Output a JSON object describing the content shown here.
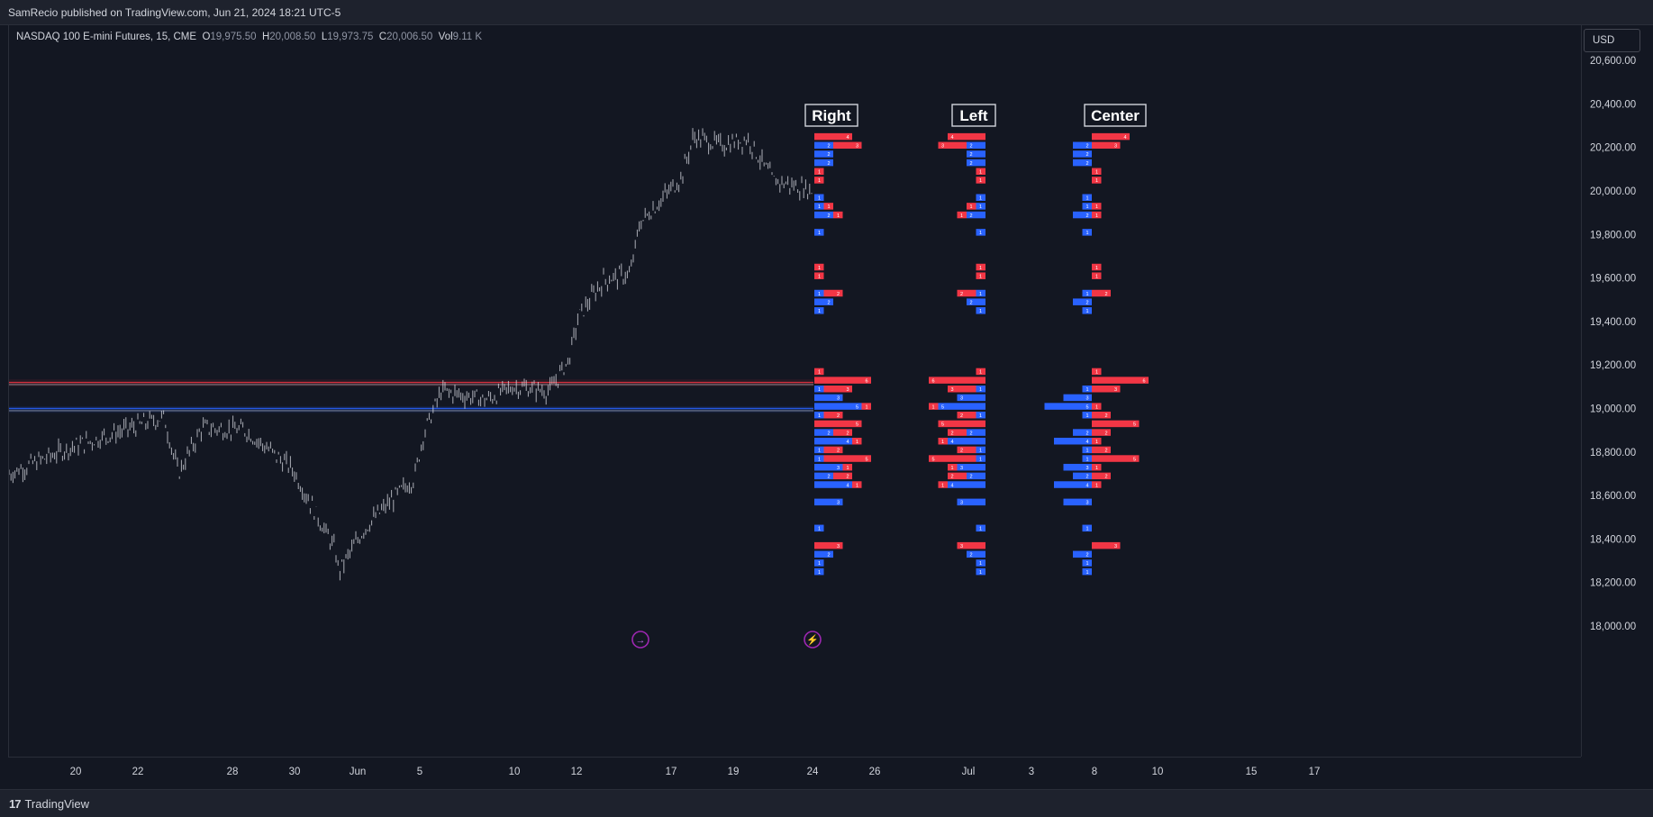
{
  "header": {
    "publisher": "SamRecio published on TradingView.com, Jun 21, 2024 18:21 UTC-5"
  },
  "legend": {
    "symbol": "NASDAQ 100 E-mini Futures, 15, CME",
    "open_label": "O",
    "open": "19,975.50",
    "high_label": "H",
    "high": "20,008.50",
    "low_label": "L",
    "low": "19,973.75",
    "close_label": "C",
    "close": "20,006.50",
    "vol_label": "Vol",
    "vol": "9.11 K"
  },
  "currency": "USD",
  "footer": {
    "brand": "TradingView",
    "brand_icon": "tradingview-logo-icon"
  },
  "colors": {
    "bg": "#131722",
    "bull": "#2962ff",
    "bear": "#f23645",
    "candle": "#d1d4dc",
    "grid_text": "#d1d4dc"
  },
  "chart_data": {
    "type": "candlestick-with-volume-profiles",
    "y_axis": {
      "unit": "USD",
      "range": [
        17920,
        20740
      ],
      "ticks": [
        18000,
        18200,
        18400,
        18600,
        18800,
        19000,
        19200,
        19400,
        19600,
        19800,
        20000,
        20200,
        20400,
        20600
      ],
      "tick_labels": [
        "18,000.00",
        "18,200.00",
        "18,400.00",
        "18,600.00",
        "18,800.00",
        "19,000.00",
        "19,200.00",
        "19,400.00",
        "19,600.00",
        "19,800.00",
        "20,000.00",
        "20,200.00",
        "20,400.00",
        "20,600.00"
      ]
    },
    "x_axis": {
      "tick_labels": [
        "20",
        "22",
        "28",
        "30",
        "Jun",
        "5",
        "10",
        "12",
        "17",
        "19",
        "24",
        "26",
        "Jul",
        "3",
        "8",
        "10",
        "15",
        "17"
      ]
    },
    "price_path": [
      [
        "20",
        18700
      ],
      [
        "22",
        18820
      ],
      [
        "23",
        18960
      ],
      [
        "24",
        18700
      ],
      [
        "27",
        18910
      ],
      [
        "28",
        18900
      ],
      [
        "29",
        18720
      ],
      [
        "30",
        18350
      ],
      [
        "30b",
        18250
      ],
      [
        "Jun",
        18450
      ],
      [
        "3",
        18600
      ],
      [
        "4",
        18680
      ],
      [
        "5",
        18880
      ],
      [
        "6",
        19080
      ],
      [
        "7",
        19040
      ],
      [
        "10",
        19100
      ],
      [
        "11",
        19080
      ],
      [
        "12",
        19230
      ],
      [
        "12b",
        19420
      ],
      [
        "13",
        19590
      ],
      [
        "14",
        19620
      ],
      [
        "14b",
        19850
      ],
      [
        "17",
        20060
      ],
      [
        "17b",
        20250
      ],
      [
        "18",
        20210
      ],
      [
        "19",
        20240
      ],
      [
        "20",
        20050
      ],
      [
        "21",
        20000
      ]
    ],
    "levels": [
      {
        "price": 19120,
        "color": "#f23645"
      },
      {
        "price": 19110,
        "color": "#787b86"
      },
      {
        "price": 19000,
        "color": "#2962ff"
      },
      {
        "price": 18990,
        "color": "#787b86"
      }
    ],
    "profiles": [
      {
        "title": "Right",
        "align": "right"
      },
      {
        "title": "Left",
        "align": "left"
      },
      {
        "title": "Center",
        "align": "center"
      }
    ],
    "profile_rows": [
      {
        "price": 20250,
        "buy": 0,
        "sell": 4
      },
      {
        "price": 20210,
        "buy": 2,
        "sell": 3
      },
      {
        "price": 20170,
        "buy": 2,
        "sell": 0
      },
      {
        "price": 20130,
        "buy": 2,
        "sell": 0
      },
      {
        "price": 20090,
        "buy": 0,
        "sell": 1
      },
      {
        "price": 20050,
        "buy": 0,
        "sell": 1
      },
      {
        "price": 19970,
        "buy": 1,
        "sell": 0
      },
      {
        "price": 19930,
        "buy": 1,
        "sell": 1
      },
      {
        "price": 19890,
        "buy": 2,
        "sell": 1
      },
      {
        "price": 19810,
        "buy": 1,
        "sell": 0
      },
      {
        "price": 19650,
        "buy": 0,
        "sell": 1
      },
      {
        "price": 19610,
        "buy": 0,
        "sell": 1
      },
      {
        "price": 19530,
        "buy": 1,
        "sell": 2
      },
      {
        "price": 19490,
        "buy": 2,
        "sell": 0
      },
      {
        "price": 19450,
        "buy": 1,
        "sell": 0
      },
      {
        "price": 19170,
        "buy": 0,
        "sell": 1
      },
      {
        "price": 19130,
        "buy": 0,
        "sell": 6
      },
      {
        "price": 19090,
        "buy": 1,
        "sell": 3
      },
      {
        "price": 19050,
        "buy": 3,
        "sell": 0
      },
      {
        "price": 19010,
        "buy": 5,
        "sell": 1
      },
      {
        "price": 18970,
        "buy": 1,
        "sell": 2
      },
      {
        "price": 18930,
        "buy": 0,
        "sell": 5
      },
      {
        "price": 18890,
        "buy": 2,
        "sell": 2
      },
      {
        "price": 18850,
        "buy": 4,
        "sell": 1
      },
      {
        "price": 18810,
        "buy": 1,
        "sell": 2
      },
      {
        "price": 18770,
        "buy": 1,
        "sell": 5
      },
      {
        "price": 18730,
        "buy": 3,
        "sell": 1
      },
      {
        "price": 18690,
        "buy": 2,
        "sell": 2
      },
      {
        "price": 18650,
        "buy": 4,
        "sell": 1
      },
      {
        "price": 18570,
        "buy": 3,
        "sell": 0
      },
      {
        "price": 18450,
        "buy": 1,
        "sell": 0
      },
      {
        "price": 18370,
        "buy": 0,
        "sell": 3
      },
      {
        "price": 18330,
        "buy": 2,
        "sell": 0
      },
      {
        "price": 18290,
        "buy": 1,
        "sell": 0
      },
      {
        "price": 18250,
        "buy": 1,
        "sell": 0
      }
    ],
    "events": [
      {
        "icon": "dividend-arrow-icon",
        "x_label": "14"
      },
      {
        "icon": "lightning-earnings-icon",
        "x_label": "24"
      }
    ]
  }
}
